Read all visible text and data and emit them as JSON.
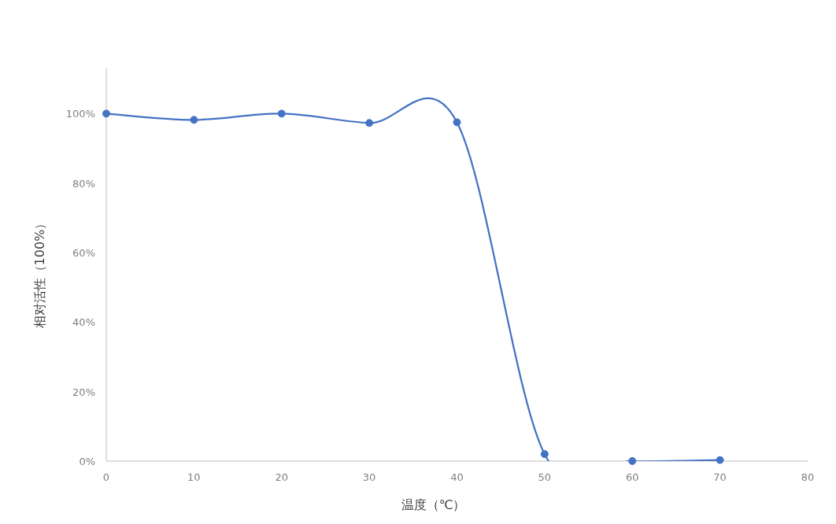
{
  "chart_data": {
    "type": "line",
    "xlabel": "温度（℃）",
    "ylabel": "相对活性（100%）",
    "x": [
      0,
      10,
      20,
      30,
      40,
      50,
      60,
      70
    ],
    "series": [
      {
        "color": "#4472c4",
        "values": [
          100,
          98.2,
          100,
          97.3,
          97.5,
          2,
          0,
          0.3
        ]
      }
    ],
    "marker": "circle",
    "xlim": [
      0,
      80
    ],
    "xticks": [
      0,
      10,
      20,
      30,
      40,
      50,
      60,
      70,
      80
    ],
    "ylim": [
      0,
      113
    ],
    "yticks": [
      {
        "value": 0,
        "label": "0%"
      },
      {
        "value": 20,
        "label": "20%"
      },
      {
        "value": 40,
        "label": "40%"
      },
      {
        "value": 60,
        "label": "60%"
      },
      {
        "value": 80,
        "label": "80%"
      },
      {
        "value": 100,
        "label": "100%"
      }
    ]
  }
}
